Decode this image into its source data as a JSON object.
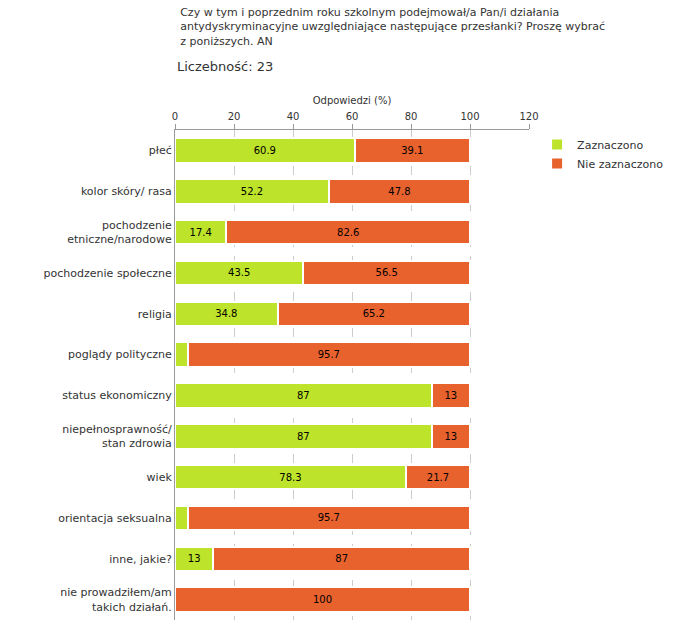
{
  "chart_data": {
    "type": "bar",
    "orientation": "horizontal",
    "stacked": true,
    "title": "Czy w tym i poprzednim roku szkolnym podejmował/a Pan/i działania antydyskryminacyjne uwzględniające następujące przesłanki? Proszę wybrać z poniższych. AN",
    "subtitle": "Liczebność: 23",
    "x_label": "Odpowiedzi (%)",
    "categories": [
      "płeć",
      "kolor skóry/ rasa",
      "pochodzenie etniczne/narodowe",
      "pochodzenie społeczne",
      "religia",
      "poglądy polityczne",
      "status ekonomiczny",
      "niepełnosprawność/ stan zdrowia",
      "wiek",
      "orientacja seksualna",
      "inne, jakie?",
      "nie prowadziłem/am takich działań."
    ],
    "series": [
      {
        "name": "Zaznaczono",
        "color": "#bde32a",
        "values": [
          60.9,
          52.2,
          17.4,
          43.5,
          34.8,
          4.3,
          87,
          87,
          78.3,
          4.3,
          13,
          0
        ],
        "value_labels": [
          "60.9",
          "52.2",
          "17.4",
          "43.5",
          "34.8",
          null,
          "87",
          "87",
          "78.3",
          null,
          "13",
          null
        ]
      },
      {
        "name": "Nie zaznaczono",
        "color": "#e8622e",
        "values": [
          39.1,
          47.8,
          82.6,
          56.5,
          65.2,
          95.7,
          13,
          13,
          21.7,
          95.7,
          87,
          100
        ],
        "value_labels": [
          "39.1",
          "47.8",
          "82.6",
          "56.5",
          "65.2",
          "95.7",
          "13",
          "13",
          "21.7",
          "95.7",
          "87",
          "100"
        ]
      }
    ],
    "xlim": [
      0,
      120
    ],
    "xticks": [
      0,
      20,
      40,
      60,
      80,
      100,
      120
    ],
    "grid": true,
    "data_labels": true,
    "legend": "top right"
  }
}
